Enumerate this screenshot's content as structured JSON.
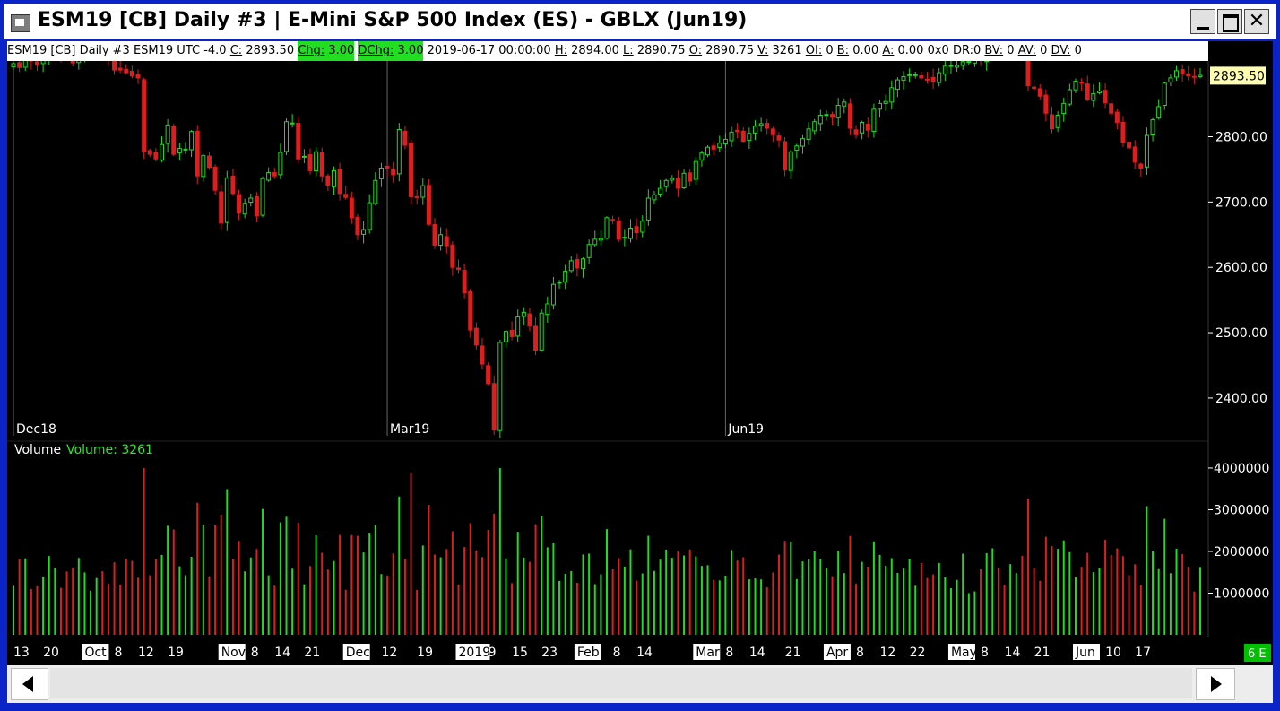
{
  "window": {
    "title": "ESM19 [CB]  Daily  #3 | E-Mini S&P 500 Index (ES) - GBLX (Jun19)",
    "close_glyph": "✕"
  },
  "infobar": {
    "symbol": "ESM19 [CB]  Daily  #3 ESM19 UTC -4.0",
    "close_label": "C:",
    "close_value": "2893.50",
    "chg_label": "Chg:",
    "chg_value": "3.00",
    "dchg_label": "DChg:",
    "dchg_value": "3.00",
    "datetime": "2019-06-17 00:00:00",
    "high_label": "H:",
    "high_value": "2894.00",
    "low_label": "L:",
    "low_value": "2890.75",
    "open_label": "O:",
    "open_value": "2890.75",
    "vol_label": "V:",
    "vol_value": "3261",
    "oi_label": "OI:",
    "oi_value": "0",
    "bid_label": "B:",
    "bid_value": "0.00",
    "ask_label": "A:",
    "ask_value": "0.00 0x0 DR:0",
    "bv_label": "BV:",
    "bv_value": "0",
    "av_label": "AV:",
    "av_value": "0",
    "dv_label": "DV:",
    "dv_value": "0"
  },
  "volume_panel": {
    "label": "Volume",
    "value_text": "Volume: 3261"
  },
  "colors": {
    "up": "#1edc1e",
    "down": "#dc1e1e",
    "price_tag_bg": "#ffffb0",
    "corner_bg": "#00c000"
  },
  "corner_label": "6 E",
  "chart_data": {
    "type": "candlestick",
    "instrument": "ESM19",
    "price_axis": {
      "ticks": [
        2400,
        2500,
        2600,
        2700,
        2800
      ],
      "tick_labels": [
        "2400.00",
        "2500.00",
        "2600.00",
        "2700.00",
        "2800.00"
      ],
      "range": [
        2345,
        2905
      ],
      "last_price_label": "2893.50",
      "last_price": 2893.5
    },
    "volume_axis": {
      "ticks": [
        1000000,
        2000000,
        3000000,
        4000000
      ],
      "tick_labels": [
        "1000000",
        "2000000",
        "3000000",
        "4000000"
      ],
      "range": [
        0,
        4300000
      ]
    },
    "contract_markers": [
      {
        "label": "Dec18",
        "index": 0
      },
      {
        "label": "Mar19",
        "index": 63
      },
      {
        "label": "Jun19",
        "index": 120
      }
    ],
    "date_axis": {
      "labels": [
        {
          "index": 0,
          "text": "13",
          "boxed": false
        },
        {
          "index": 5,
          "text": "20",
          "boxed": false
        },
        {
          "index": 12,
          "text": "Oct",
          "boxed": true
        },
        {
          "index": 17,
          "text": "8",
          "boxed": false
        },
        {
          "index": 21,
          "text": "12",
          "boxed": false
        },
        {
          "index": 26,
          "text": "19",
          "boxed": false
        },
        {
          "index": 35,
          "text": "Nov",
          "boxed": true
        },
        {
          "index": 40,
          "text": "8",
          "boxed": false
        },
        {
          "index": 44,
          "text": "14",
          "boxed": false
        },
        {
          "index": 49,
          "text": "21",
          "boxed": false
        },
        {
          "index": 56,
          "text": "Dec",
          "boxed": true
        },
        {
          "index": 62,
          "text": "12",
          "boxed": false
        },
        {
          "index": 68,
          "text": "19",
          "boxed": false
        },
        {
          "index": 75,
          "text": "2019",
          "boxed": true
        },
        {
          "index": 80,
          "text": "9",
          "boxed": false
        },
        {
          "index": 84,
          "text": "15",
          "boxed": false
        },
        {
          "index": 89,
          "text": "23",
          "boxed": false
        },
        {
          "index": 95,
          "text": "Feb",
          "boxed": true
        },
        {
          "index": 101,
          "text": "8",
          "boxed": false
        },
        {
          "index": 105,
          "text": "14",
          "boxed": false
        },
        {
          "index": 115,
          "text": "Mar",
          "boxed": true
        },
        {
          "index": 120,
          "text": "8",
          "boxed": false
        },
        {
          "index": 124,
          "text": "14",
          "boxed": false
        },
        {
          "index": 130,
          "text": "21",
          "boxed": false
        },
        {
          "index": 137,
          "text": "Apr",
          "boxed": true
        },
        {
          "index": 142,
          "text": "8",
          "boxed": false
        },
        {
          "index": 146,
          "text": "12",
          "boxed": false
        },
        {
          "index": 151,
          "text": "22",
          "boxed": false
        },
        {
          "index": 158,
          "text": "May",
          "boxed": true
        },
        {
          "index": 163,
          "text": "8",
          "boxed": false
        },
        {
          "index": 167,
          "text": "14",
          "boxed": false
        },
        {
          "index": 172,
          "text": "21",
          "boxed": false
        },
        {
          "index": 179,
          "text": "Jun",
          "boxed": true
        },
        {
          "index": 184,
          "text": "10",
          "boxed": false
        },
        {
          "index": 189,
          "text": "17",
          "boxed": false
        }
      ]
    },
    "close": [
      2912,
      2906,
      2922,
      2916,
      2910,
      2919,
      2923,
      2934,
      2926,
      2920,
      2913,
      2923,
      2924,
      2929,
      2932,
      2921,
      2917,
      2902,
      2902,
      2898,
      2893,
      2890,
      2778,
      2773,
      2766,
      2788,
      2818,
      2773,
      2782,
      2781,
      2808,
      2740,
      2771,
      2753,
      2718,
      2668,
      2737,
      2713,
      2683,
      2698,
      2706,
      2679,
      2736,
      2745,
      2740,
      2776,
      2823,
      2821,
      2766,
      2770,
      2748,
      2777,
      2740,
      2726,
      2748,
      2713,
      2707,
      2676,
      2650,
      2658,
      2699,
      2733,
      2752,
      2752,
      2742,
      2811,
      2787,
      2708,
      2708,
      2725,
      2666,
      2634,
      2650,
      2633,
      2600,
      2597,
      2561,
      2504,
      2481,
      2452,
      2422,
      2351,
      2485,
      2502,
      2494,
      2524,
      2531,
      2510,
      2473,
      2530,
      2544,
      2574,
      2577,
      2594,
      2610,
      2599,
      2613,
      2635,
      2643,
      2644,
      2676,
      2672,
      2643,
      2646,
      2660,
      2653,
      2671,
      2706,
      2711,
      2721,
      2733,
      2736,
      2721,
      2744,
      2732,
      2762,
      2775,
      2784,
      2781,
      2790,
      2796,
      2807,
      2808,
      2793,
      2805,
      2816,
      2820,
      2813,
      2803,
      2795,
      2749,
      2777,
      2786,
      2797,
      2812,
      2823,
      2833,
      2834,
      2830,
      2848,
      2853,
      2813,
      2803,
      2822,
      2810,
      2842,
      2851,
      2854,
      2875,
      2887,
      2892,
      2895,
      2895,
      2890,
      2888,
      2884,
      2898,
      2908,
      2909,
      2909,
      2915,
      2915,
      2919,
      2917,
      2926,
      2938,
      2939,
      2936,
      2935,
      2946,
      2933,
      2878,
      2874,
      2862,
      2836,
      2812,
      2833,
      2851,
      2872,
      2885,
      2882,
      2857,
      2866,
      2870,
      2852,
      2836,
      2822,
      2791,
      2783,
      2761,
      2752,
      2802,
      2826,
      2846,
      2882,
      2890,
      2901,
      2896,
      2893,
      2891,
      2894
    ]
  }
}
